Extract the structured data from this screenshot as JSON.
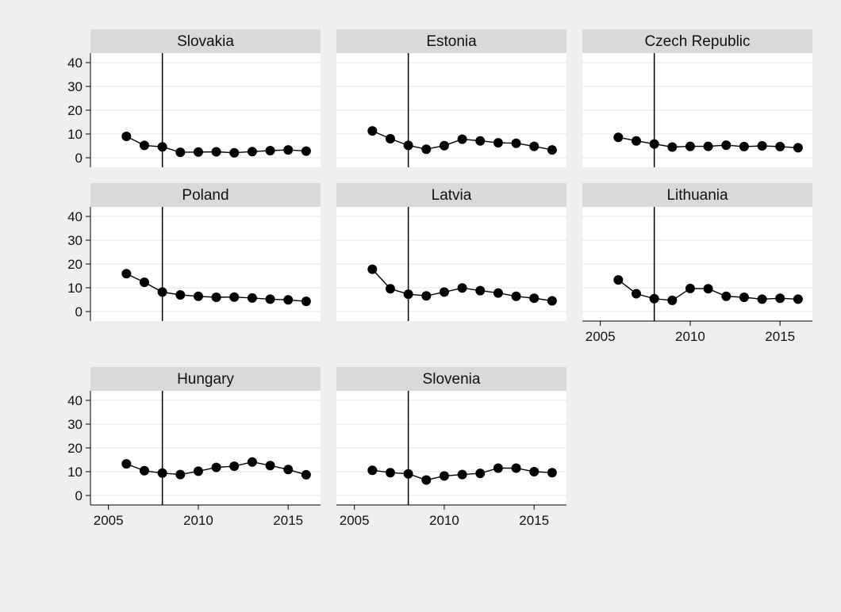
{
  "chart_data": {
    "type": "line",
    "layout": "small-multiples",
    "colors": {
      "background": "#efefef",
      "panel": "#ffffff",
      "header": "#d9d9d9",
      "grid": "#e6e6e6",
      "marks": "#000000"
    },
    "x": [
      2006,
      2007,
      2008,
      2009,
      2010,
      2011,
      2012,
      2013,
      2014,
      2015,
      2016
    ],
    "xlim": [
      2004,
      2016.8
    ],
    "ylim": [
      -4,
      44
    ],
    "xticks": [
      "2005",
      "2010",
      "2015"
    ],
    "yticks": [
      "0",
      "10",
      "20",
      "30",
      "40"
    ],
    "reference_line_x": 2008,
    "panels": [
      {
        "name": "Slovakia",
        "values": [
          9,
          5.2,
          4.6,
          2.3,
          2.4,
          2.5,
          2.1,
          2.6,
          3.0,
          3.3,
          2.8
        ]
      },
      {
        "name": "Estonia",
        "values": [
          11.3,
          8.0,
          5.2,
          3.6,
          5.1,
          7.8,
          7.1,
          6.3,
          6.1,
          4.8,
          3.3
        ]
      },
      {
        "name": "Czech Republic",
        "values": [
          8.6,
          7.1,
          5.8,
          4.5,
          4.8,
          4.8,
          5.3,
          4.7,
          5.0,
          4.7,
          4.2
        ]
      },
      {
        "name": "Poland",
        "values": [
          15.9,
          12.3,
          8.2,
          7.0,
          6.4,
          6.0,
          6.1,
          5.7,
          5.2,
          4.9,
          4.3
        ]
      },
      {
        "name": "Latvia",
        "values": [
          17.8,
          9.6,
          7.3,
          6.6,
          8.2,
          9.9,
          8.8,
          7.8,
          6.4,
          5.6,
          4.5
        ]
      },
      {
        "name": "Lithuania",
        "values": [
          13.3,
          7.5,
          5.4,
          4.7,
          9.7,
          9.6,
          6.4,
          6.0,
          5.2,
          5.6,
          5.2
        ]
      },
      {
        "name": "Hungary",
        "values": [
          13.3,
          10.4,
          9.4,
          8.8,
          10.2,
          11.8,
          12.3,
          14.1,
          12.6,
          10.9,
          8.7
        ]
      },
      {
        "name": "Slovenia",
        "values": [
          10.6,
          9.6,
          9.1,
          6.5,
          8.2,
          8.8,
          9.3,
          11.5,
          11.5,
          10.0,
          9.6
        ]
      }
    ]
  }
}
